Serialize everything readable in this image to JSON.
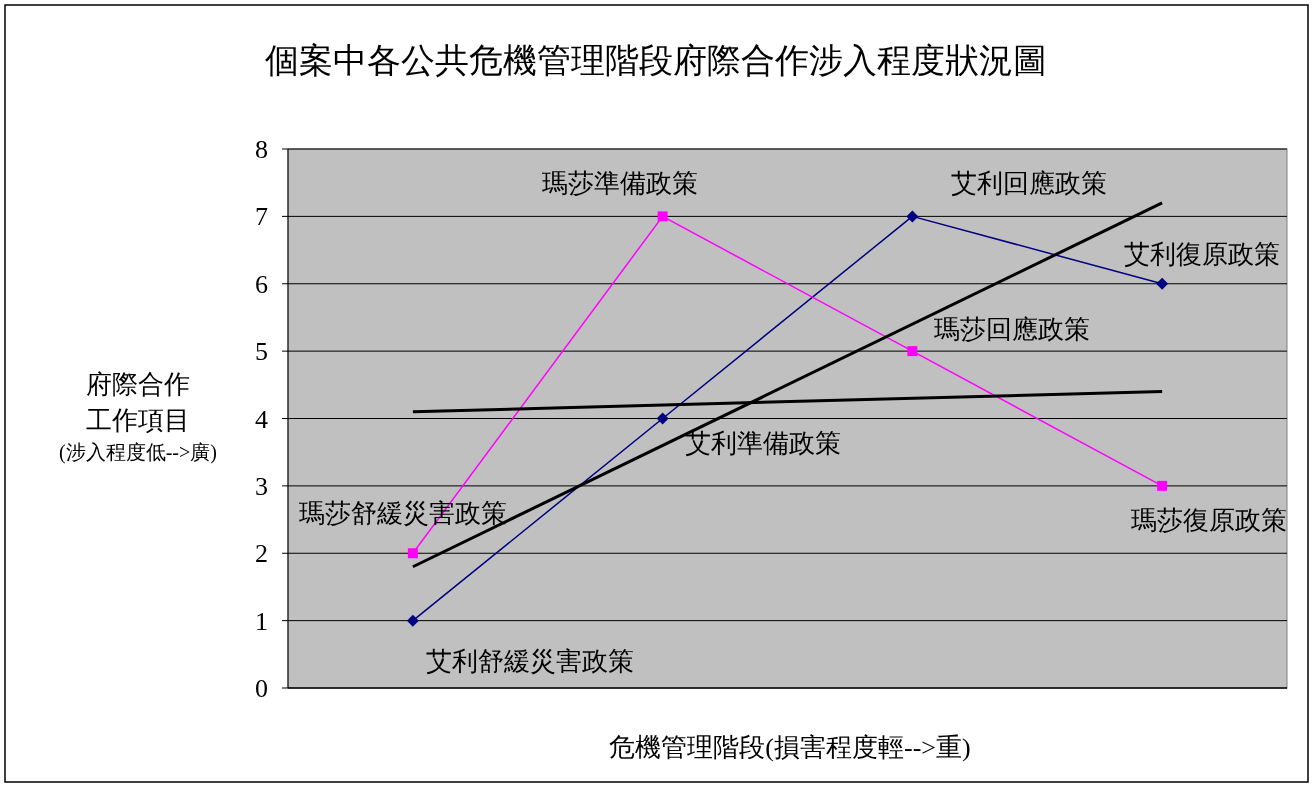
{
  "chart_data": {
    "type": "line",
    "title": "個案中各公共危機管理階段府際合作涉入程度狀況圖",
    "xlabel": "危機管理階段(損害程度輕-->重)",
    "ylabel": "府際合作工作項目(涉入程度低-->廣)",
    "categories": [
      null,
      null,
      null,
      null
    ],
    "ylim": [
      0,
      8
    ],
    "yticks": [
      0,
      1,
      2,
      3,
      4,
      5,
      6,
      7,
      8
    ],
    "grid": "y",
    "tick_labels": "y",
    "series": [
      {
        "color": "#000080",
        "marker": "diamond",
        "values": [
          1,
          4,
          7,
          6
        ],
        "value_labels": [
          "艾利舒緩災害政策",
          "艾利準備政策",
          "艾利回應政策",
          "艾利復原政策"
        ]
      },
      {
        "color": "#ff00ff",
        "marker": "square",
        "values": [
          2,
          7,
          5,
          3
        ],
        "value_labels": [
          "瑪莎舒緩災害政策",
          "瑪莎準備政策",
          "瑪莎回應政策",
          "瑪莎復原政策"
        ]
      },
      {
        "color": "#000000",
        "marker": "none",
        "values": [
          1.8,
          null,
          null,
          7.2
        ]
      },
      {
        "color": "#000000",
        "marker": "none",
        "values": [
          4.1,
          null,
          null,
          4.4
        ]
      }
    ]
  }
}
